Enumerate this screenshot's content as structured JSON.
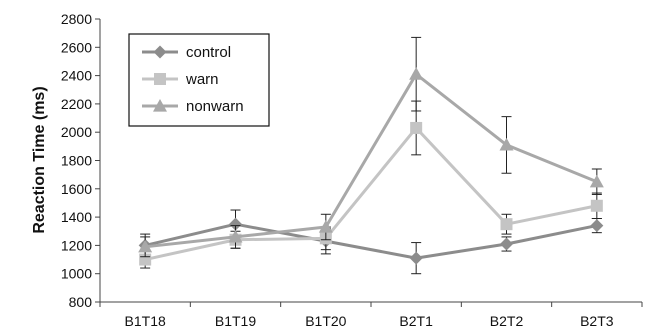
{
  "chart_data": {
    "type": "line",
    "title": "",
    "xlabel": "",
    "ylabel": "Reaction Time (ms)",
    "ylim": [
      800,
      2800
    ],
    "yticks": [
      800,
      1000,
      1200,
      1400,
      1600,
      1800,
      2000,
      2200,
      2400,
      2600,
      2800
    ],
    "categories": [
      "B1T18",
      "B1T19",
      "B1T20",
      "B2T1",
      "B2T2",
      "B2T3"
    ],
    "grid": false,
    "legend_position": "top-left",
    "series": [
      {
        "name": "control",
        "marker": "diamond",
        "color": "#8c8c8c",
        "values": [
          1200,
          1350,
          1230,
          1110,
          1210,
          1340
        ],
        "errors": [
          80,
          100,
          90,
          110,
          50,
          50
        ]
      },
      {
        "name": "warn",
        "marker": "square",
        "color": "#c4c4c4",
        "values": [
          1100,
          1240,
          1250,
          2030,
          1350,
          1480
        ],
        "errors": [
          60,
          60,
          80,
          190,
          70,
          90
        ]
      },
      {
        "name": "nonwarn",
        "marker": "triangle",
        "color": "#a8a8a8",
        "values": [
          1190,
          1260,
          1330,
          2410,
          1910,
          1650
        ],
        "errors": [
          70,
          80,
          90,
          260,
          200,
          90
        ]
      }
    ]
  }
}
